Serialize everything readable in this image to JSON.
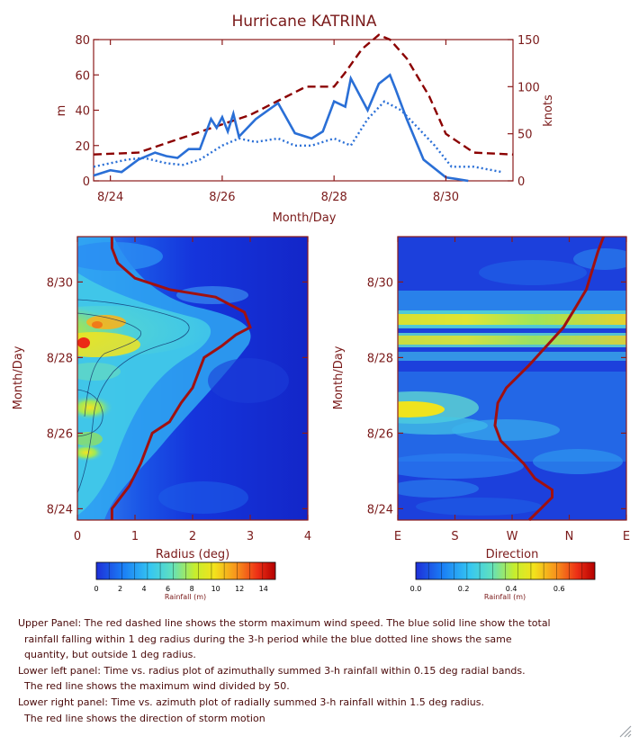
{
  "title": "Hurricane KATRINA",
  "chart_data": [
    {
      "type": "line",
      "panel": "upper",
      "title": "Hurricane KATRINA",
      "xlabel": "Month/Day",
      "xlim": [
        23.7,
        31.2
      ],
      "x_ticks": [
        {
          "v": 24,
          "label": "8/24"
        },
        {
          "v": 26,
          "label": "8/26"
        },
        {
          "v": 28,
          "label": "8/28"
        },
        {
          "v": 30,
          "label": "8/30"
        }
      ],
      "ylabel_left": "m",
      "ylim_left": [
        0,
        80
      ],
      "yticks_left": [
        0,
        20,
        40,
        60,
        80
      ],
      "ylabel_right": "knots",
      "ylim_right": [
        0,
        150
      ],
      "yticks_right": [
        0,
        50,
        100,
        150
      ],
      "series": [
        {
          "axis": "right",
          "style": "dashed",
          "color": "#8b0000",
          "x": [
            23.7,
            24.5,
            25.0,
            25.5,
            26.0,
            26.5,
            27.0,
            27.5,
            28.0,
            28.2,
            28.5,
            28.8,
            29.0,
            29.3,
            29.7,
            30.0,
            30.5,
            31.2
          ],
          "values": [
            28,
            30,
            40,
            50,
            60,
            70,
            85,
            100,
            100,
            115,
            140,
            155,
            150,
            130,
            90,
            50,
            30,
            28
          ]
        },
        {
          "axis": "left",
          "style": "solid",
          "color": "#2a6fd6",
          "x": [
            23.7,
            24.0,
            24.2,
            24.5,
            24.8,
            25.0,
            25.2,
            25.4,
            25.6,
            25.8,
            25.9,
            26.0,
            26.1,
            26.2,
            26.3,
            26.6,
            27.0,
            27.3,
            27.6,
            27.8,
            28.0,
            28.2,
            28.3,
            28.6,
            28.8,
            29.0,
            29.1,
            29.3,
            29.6,
            30.0,
            30.4
          ],
          "values": [
            3,
            6,
            5,
            12,
            16,
            14,
            13,
            18,
            18,
            35,
            30,
            36,
            28,
            38,
            25,
            35,
            44,
            27,
            24,
            28,
            45,
            42,
            58,
            40,
            55,
            60,
            52,
            35,
            12,
            2,
            0
          ]
        },
        {
          "axis": "left",
          "style": "dotted",
          "color": "#2a6fd6",
          "x": [
            23.7,
            24.0,
            24.3,
            24.6,
            25.0,
            25.3,
            25.6,
            26.0,
            26.3,
            26.6,
            27.0,
            27.3,
            27.6,
            28.0,
            28.3,
            28.6,
            28.9,
            29.2,
            29.5,
            29.8,
            30.1,
            30.5,
            31.0
          ],
          "values": [
            8,
            10,
            12,
            13,
            10,
            9,
            12,
            20,
            24,
            22,
            24,
            20,
            20,
            24,
            20,
            35,
            45,
            40,
            30,
            20,
            8,
            8,
            5
          ]
        }
      ]
    },
    {
      "type": "heatmap",
      "panel": "lower-left",
      "xlabel": "Radius (deg)",
      "ylabel": "Month/Day",
      "xlim": [
        0,
        4
      ],
      "xticks": [
        0,
        1,
        2,
        3,
        4
      ],
      "ylim": [
        23.7,
        31.2
      ],
      "y_ticks": [
        {
          "v": 24,
          "label": "8/24"
        },
        {
          "v": 26,
          "label": "8/26"
        },
        {
          "v": 28,
          "label": "8/28"
        },
        {
          "v": 30,
          "label": "8/30"
        }
      ],
      "line": {
        "name": "max wind / 50",
        "color": "#a01010",
        "x": [
          0.6,
          0.6,
          0.9,
          1.1,
          1.3,
          1.6,
          1.8,
          2.0,
          2.1,
          2.2,
          2.5,
          2.75,
          3.0,
          2.9,
          2.4,
          1.6,
          1.0,
          0.7,
          0.6,
          0.6
        ],
        "y": [
          23.7,
          24.0,
          24.6,
          25.2,
          26.0,
          26.3,
          26.8,
          27.2,
          27.6,
          28.0,
          28.3,
          28.6,
          28.8,
          29.2,
          29.6,
          29.8,
          30.1,
          30.5,
          30.9,
          31.2
        ]
      },
      "colorbar": {
        "label": "Rainfall (m)",
        "min": 0,
        "max": 15,
        "ticks": [
          "0",
          "2",
          "4",
          "6",
          "8",
          "10",
          "12",
          "14"
        ]
      }
    },
    {
      "type": "heatmap",
      "panel": "lower-right",
      "xlabel": "Direction",
      "ylabel": "Month/Day",
      "x_categories": [
        "E",
        "S",
        "W",
        "N",
        "E"
      ],
      "ylim": [
        23.7,
        31.2
      ],
      "y_ticks": [
        {
          "v": 24,
          "label": "8/24"
        },
        {
          "v": 26,
          "label": "8/26"
        },
        {
          "v": 28,
          "label": "8/28"
        },
        {
          "v": 30,
          "label": "8/30"
        }
      ],
      "line": {
        "name": "storm motion direction",
        "color": "#a01010",
        "x": [
          2.3,
          2.5,
          2.7,
          2.7,
          2.4,
          2.2,
          1.8,
          1.7,
          1.75,
          1.9,
          2.3,
          2.6,
          2.9,
          3.1,
          3.3,
          3.4,
          3.5,
          3.6
        ],
        "y": [
          23.7,
          24.0,
          24.3,
          24.5,
          24.8,
          25.2,
          25.8,
          26.2,
          26.8,
          27.2,
          27.8,
          28.3,
          28.8,
          29.3,
          29.8,
          30.3,
          30.8,
          31.2
        ]
      },
      "colorbar": {
        "label": "Rainfall (m)",
        "min": 0,
        "max": 0.75,
        "ticks": [
          "0.0",
          "0.2",
          "0.4",
          "0.6"
        ]
      }
    }
  ],
  "caption": [
    {
      "text": "Upper Panel: The red dashed line shows the storm maximum wind speed. The blue solid line show the total",
      "indent": false
    },
    {
      "text": "rainfall falling within 1 deg radius during the 3-h period while the blue dotted line shows the same",
      "indent": true
    },
    {
      "text": "quantity, but outside 1 deg radius.",
      "indent": true
    },
    {
      "text": "Lower left panel: Time vs. radius plot of azimuthally summed 3-h rainfall within 0.15 deg radial bands.",
      "indent": false
    },
    {
      "text": "The red line shows the maximum wind divided by 50.",
      "indent": true
    },
    {
      "text": "Lower right panel: Time vs. azimuth plot of radially  summed 3-h rainfall within 1.5 deg radius.",
      "indent": false
    },
    {
      "text": "The red line shows the direction of storm motion",
      "indent": true
    }
  ],
  "colors": {
    "axis": "#8b1a1a",
    "text": "#7a1a1a",
    "wind": "#8b0000",
    "rain": "#2a6fd6"
  }
}
